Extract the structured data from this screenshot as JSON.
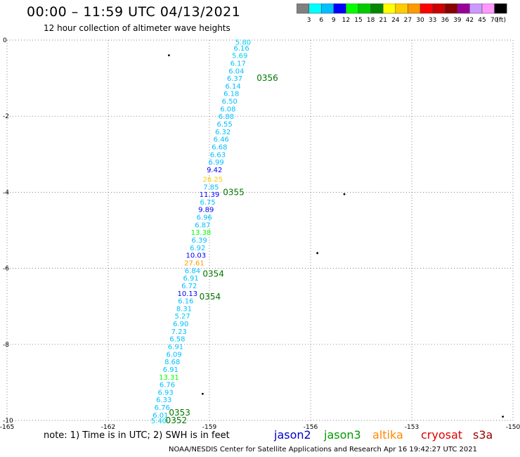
{
  "header": {
    "title": "00:00 – 11:59 UTC 04/13/2021",
    "subtitle": "12 hour collection of altimeter wave heights"
  },
  "colorbar": {
    "unit": "(ft)",
    "ticks": [
      "3",
      "6",
      "9",
      "12",
      "15",
      "18",
      "21",
      "24",
      "27",
      "30",
      "33",
      "36",
      "39",
      "42",
      "45",
      "70"
    ],
    "colors": [
      "#808080",
      "#00ffff",
      "#00bfff",
      "#0000ff",
      "#00ff00",
      "#00cc00",
      "#008800",
      "#ffff00",
      "#ffcc00",
      "#ff9900",
      "#ff0000",
      "#cc0000",
      "#880000",
      "#990099",
      "#cc99ff",
      "#ff99ff",
      "#000000"
    ]
  },
  "axes": {
    "x_ticks": [
      "-165",
      "-162",
      "-159",
      "-156",
      "-153",
      "-150"
    ],
    "y_ticks": [
      "0",
      "-2",
      "-4",
      "-6",
      "-8",
      "-10"
    ]
  },
  "chart_data": {
    "type": "map-track",
    "xlim": [
      -165,
      -150
    ],
    "ylim": [
      -10,
      0
    ],
    "track_points": [
      {
        "lon": -158.0,
        "lat": -0.05,
        "v": "5.80"
      },
      {
        "lon": -158.05,
        "lat": -0.2,
        "v": "6.16"
      },
      {
        "lon": -158.1,
        "lat": -0.4,
        "v": "5.69"
      },
      {
        "lon": -158.15,
        "lat": -0.6,
        "v": "6.17"
      },
      {
        "lon": -158.2,
        "lat": -0.8,
        "v": "6.04"
      },
      {
        "lon": -158.25,
        "lat": -1.0,
        "v": "6.37"
      },
      {
        "lon": -158.3,
        "lat": -1.2,
        "v": "6.14"
      },
      {
        "lon": -158.35,
        "lat": -1.4,
        "v": "6.18"
      },
      {
        "lon": -158.4,
        "lat": -1.6,
        "v": "6.50"
      },
      {
        "lon": -158.45,
        "lat": -1.8,
        "v": "6.08"
      },
      {
        "lon": -158.5,
        "lat": -2.0,
        "v": "6.88"
      },
      {
        "lon": -158.55,
        "lat": -2.2,
        "v": "6.55"
      },
      {
        "lon": -158.6,
        "lat": -2.4,
        "v": "6.32"
      },
      {
        "lon": -158.65,
        "lat": -2.6,
        "v": "6.46"
      },
      {
        "lon": -158.7,
        "lat": -2.8,
        "v": "6.68"
      },
      {
        "lon": -158.75,
        "lat": -3.0,
        "v": "6.63"
      },
      {
        "lon": -158.8,
        "lat": -3.2,
        "v": "6.99"
      },
      {
        "lon": -158.85,
        "lat": -3.4,
        "v": "9.42"
      },
      {
        "lon": -158.9,
        "lat": -3.65,
        "v": "26.25"
      },
      {
        "lon": -158.95,
        "lat": -3.85,
        "v": "7.85"
      },
      {
        "lon": -159.0,
        "lat": -4.05,
        "v": "11.39"
      },
      {
        "lon": -159.05,
        "lat": -4.25,
        "v": "6.75"
      },
      {
        "lon": -159.1,
        "lat": -4.45,
        "v": "9.89"
      },
      {
        "lon": -159.15,
        "lat": -4.65,
        "v": "6.96"
      },
      {
        "lon": -159.2,
        "lat": -4.85,
        "v": "6.87"
      },
      {
        "lon": -159.25,
        "lat": -5.05,
        "v": "13.38"
      },
      {
        "lon": -159.3,
        "lat": -5.25,
        "v": "6.39"
      },
      {
        "lon": -159.35,
        "lat": -5.45,
        "v": "6.92"
      },
      {
        "lon": -159.4,
        "lat": -5.65,
        "v": "10.03"
      },
      {
        "lon": -159.45,
        "lat": -5.85,
        "v": "27.61"
      },
      {
        "lon": -159.5,
        "lat": -6.05,
        "v": "6.84"
      },
      {
        "lon": -159.55,
        "lat": -6.25,
        "v": "6.91"
      },
      {
        "lon": -159.6,
        "lat": -6.45,
        "v": "6.72"
      },
      {
        "lon": -159.65,
        "lat": -6.65,
        "v": "10.13"
      },
      {
        "lon": -159.7,
        "lat": -6.85,
        "v": "6.16"
      },
      {
        "lon": -159.75,
        "lat": -7.05,
        "v": "8.31"
      },
      {
        "lon": -159.8,
        "lat": -7.25,
        "v": "5.27"
      },
      {
        "lon": -159.85,
        "lat": -7.45,
        "v": "6.90"
      },
      {
        "lon": -159.9,
        "lat": -7.65,
        "v": "7.23"
      },
      {
        "lon": -159.95,
        "lat": -7.85,
        "v": "6.58"
      },
      {
        "lon": -160.0,
        "lat": -8.05,
        "v": "6.91"
      },
      {
        "lon": -160.05,
        "lat": -8.25,
        "v": "6.09"
      },
      {
        "lon": -160.1,
        "lat": -8.45,
        "v": "8.68"
      },
      {
        "lon": -160.15,
        "lat": -8.65,
        "v": "6.91"
      },
      {
        "lon": -160.2,
        "lat": -8.85,
        "v": "13.31"
      },
      {
        "lon": -160.25,
        "lat": -9.05,
        "v": "6.76"
      },
      {
        "lon": -160.3,
        "lat": -9.25,
        "v": "6.93"
      },
      {
        "lon": -160.35,
        "lat": -9.45,
        "v": "6.33"
      },
      {
        "lon": -160.4,
        "lat": -9.65,
        "v": "6.76"
      },
      {
        "lon": -160.45,
        "lat": -9.85,
        "v": "6.01"
      },
      {
        "lon": -160.5,
        "lat": -10.0,
        "v": "5.40"
      }
    ],
    "time_labels": [
      {
        "lon": -157.6,
        "lat": -1.0,
        "t": "0356"
      },
      {
        "lon": -158.6,
        "lat": -4.0,
        "t": "0355"
      },
      {
        "lon": -159.2,
        "lat": -6.15,
        "t": "0354"
      },
      {
        "lon": -159.3,
        "lat": -6.75,
        "t": "0354"
      },
      {
        "lon": -160.2,
        "lat": -9.8,
        "t": "0353"
      },
      {
        "lon": -160.3,
        "lat": -10.0,
        "t": "0352"
      }
    ]
  },
  "legend": {
    "jason2": "jason2",
    "jason3": "jason3",
    "altika": "altika",
    "cryosat": "cryosat",
    "s3a": "s3a"
  },
  "notes": {
    "note": "note: 1) Time is in UTC; 2) SWH is in feet",
    "footer": "NOAA/NESDIS Center for Satellite Applications and Research   Apr 16 19:42:27 UTC 2021"
  }
}
